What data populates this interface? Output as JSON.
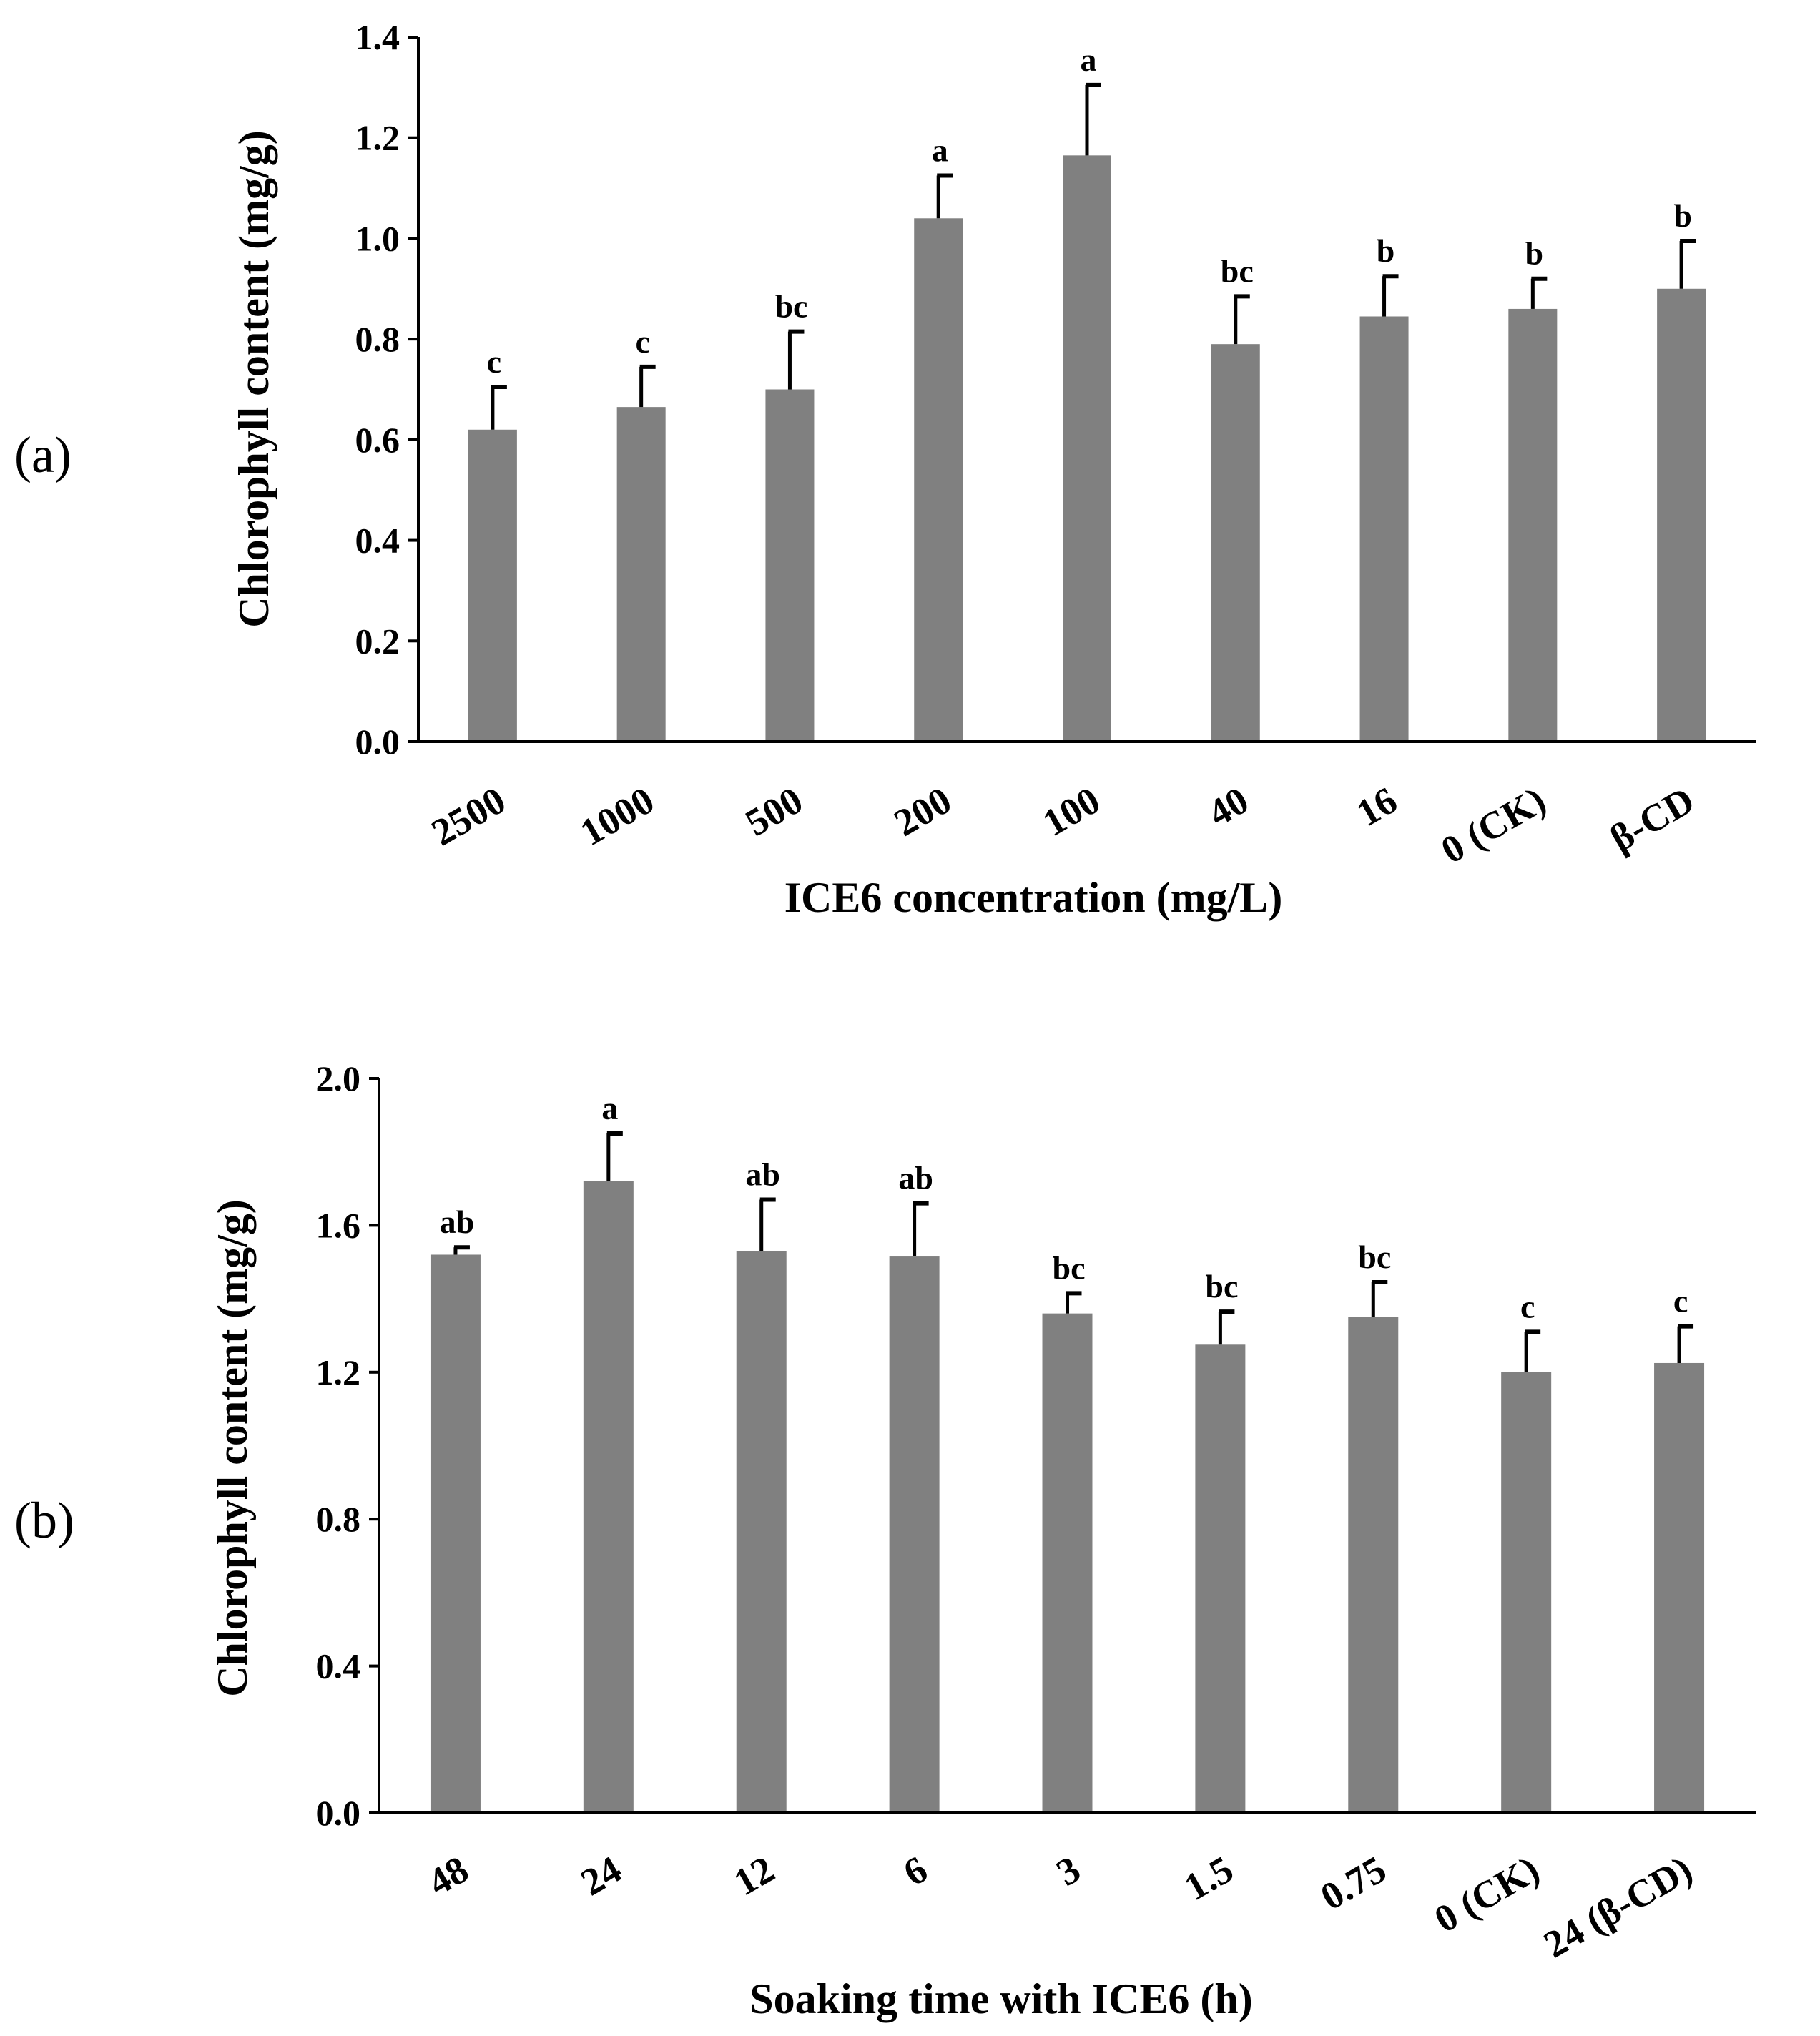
{
  "chart_data": [
    {
      "type": "bar",
      "panel_label": "(a)",
      "title": "",
      "xlabel": "ICE6 concentration (mg/L)",
      "ylabel": "Chlorophyll content (mg/g)",
      "ylim": [
        0,
        1.4
      ],
      "yticks": [
        "0.0",
        "0.2",
        "0.4",
        "0.6",
        "0.8",
        "1.0",
        "1.2",
        "1.4"
      ],
      "categories": [
        "2500",
        "1000",
        "500",
        "200",
        "100",
        "40",
        "16",
        "0 (CK)",
        "β-CD"
      ],
      "values": [
        0.62,
        0.665,
        0.7,
        1.04,
        1.165,
        0.79,
        0.845,
        0.86,
        0.9
      ],
      "errors": [
        0.085,
        0.08,
        0.115,
        0.085,
        0.14,
        0.095,
        0.08,
        0.06,
        0.095
      ],
      "significance": [
        "c",
        "c",
        "bc",
        "a",
        "a",
        "bc",
        "b",
        "b",
        "b"
      ],
      "bar_color": "#808080",
      "grid": false
    },
    {
      "type": "bar",
      "panel_label": "(b)",
      "title": "",
      "xlabel": "Soaking time with ICE6 (h)",
      "ylabel": "Chlorophyll content (mg/g)",
      "ylim": [
        0,
        2.0
      ],
      "yticks": [
        "0.0",
        "0.4",
        "0.8",
        "1.2",
        "1.6",
        "2.0"
      ],
      "categories": [
        "48",
        "24",
        "12",
        "6",
        "3",
        "1.5",
        "0.75",
        "0 (CK)",
        "24 (β-CD)"
      ],
      "values": [
        1.52,
        1.72,
        1.53,
        1.515,
        1.36,
        1.275,
        1.35,
        1.2,
        1.225
      ],
      "errors": [
        0.02,
        0.13,
        0.14,
        0.145,
        0.055,
        0.09,
        0.095,
        0.11,
        0.1
      ],
      "significance": [
        "ab",
        "a",
        "ab",
        "ab",
        "bc",
        "bc",
        "bc",
        "c",
        "c"
      ],
      "bar_color": "#808080",
      "grid": false
    }
  ]
}
